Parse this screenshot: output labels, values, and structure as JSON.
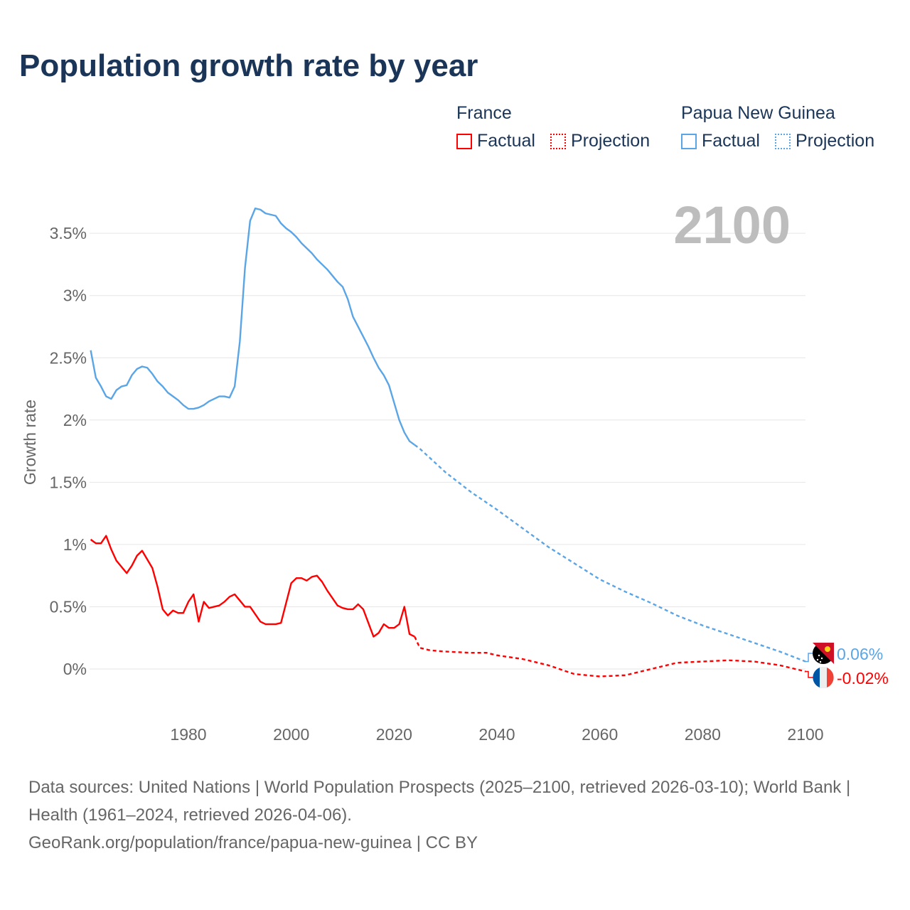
{
  "chart_data": {
    "type": "line",
    "title": "Population growth rate by year",
    "ylabel": "Growth rate",
    "xlabel": "",
    "xlim": [
      1961,
      2100
    ],
    "ylim": [
      -0.25,
      3.8
    ],
    "x_ticks": [
      1980,
      2000,
      2020,
      2040,
      2060,
      2080,
      2100
    ],
    "x_tick_labels": [
      "1980",
      "2000",
      "2020",
      "2040",
      "2060",
      "2080",
      "2100"
    ],
    "y_ticks": [
      0,
      0.5,
      1,
      1.5,
      2,
      2.5,
      3,
      3.5
    ],
    "y_tick_labels": [
      "0%",
      "0.5%",
      "1%",
      "1.5%",
      "2%",
      "2.5%",
      "3%",
      "3.5%"
    ],
    "grid": true,
    "year_label": "2100",
    "legend_placement": "top-right",
    "series": [
      {
        "name": "France",
        "color": "#ff0000",
        "end_label": "-0.02%",
        "factual_label": "Factual",
        "projection_label": "Projection",
        "factual": {
          "x": [
            1961,
            1962,
            1963,
            1964,
            1965,
            1966,
            1967,
            1968,
            1969,
            1970,
            1971,
            1972,
            1973,
            1974,
            1975,
            1976,
            1977,
            1978,
            1979,
            1980,
            1981,
            1982,
            1983,
            1984,
            1985,
            1986,
            1987,
            1988,
            1989,
            1990,
            1991,
            1992,
            1993,
            1994,
            1995,
            1996,
            1997,
            1998,
            1999,
            2000,
            2001,
            2002,
            2003,
            2004,
            2005,
            2006,
            2007,
            2008,
            2009,
            2010,
            2011,
            2012,
            2013,
            2014,
            2015,
            2016,
            2017,
            2018,
            2019,
            2020,
            2021,
            2022,
            2023,
            2024
          ],
          "y": [
            1.04,
            1.01,
            1.01,
            1.07,
            0.96,
            0.87,
            0.82,
            0.77,
            0.83,
            0.91,
            0.95,
            0.88,
            0.81,
            0.66,
            0.48,
            0.43,
            0.47,
            0.45,
            0.45,
            0.54,
            0.6,
            0.38,
            0.54,
            0.49,
            0.5,
            0.51,
            0.54,
            0.58,
            0.6,
            0.55,
            0.5,
            0.5,
            0.44,
            0.38,
            0.36,
            0.36,
            0.36,
            0.37,
            0.53,
            0.69,
            0.73,
            0.73,
            0.71,
            0.74,
            0.75,
            0.7,
            0.63,
            0.57,
            0.51,
            0.49,
            0.48,
            0.48,
            0.52,
            0.48,
            0.37,
            0.26,
            0.29,
            0.36,
            0.33,
            0.33,
            0.36,
            0.5,
            0.28,
            0.26
          ]
        },
        "projection": {
          "x": [
            2024,
            2025,
            2027,
            2030,
            2035,
            2038,
            2040,
            2045,
            2050,
            2055,
            2060,
            2065,
            2070,
            2075,
            2080,
            2085,
            2090,
            2095,
            2100
          ],
          "y": [
            0.26,
            0.17,
            0.15,
            0.14,
            0.13,
            0.13,
            0.11,
            0.08,
            0.03,
            -0.04,
            -0.06,
            -0.05,
            0.0,
            0.05,
            0.06,
            0.07,
            0.06,
            0.03,
            -0.02
          ]
        }
      },
      {
        "name": "Papua New Guinea",
        "color": "#5aa5e6",
        "end_label": "0.06%",
        "factual_label": "Factual",
        "projection_label": "Projection",
        "factual": {
          "x": [
            1961,
            1962,
            1963,
            1964,
            1965,
            1966,
            1967,
            1968,
            1969,
            1970,
            1971,
            1972,
            1973,
            1974,
            1975,
            1976,
            1977,
            1978,
            1979,
            1980,
            1981,
            1982,
            1983,
            1984,
            1985,
            1986,
            1987,
            1988,
            1989,
            1990,
            1991,
            1992,
            1993,
            1994,
            1995,
            1996,
            1997,
            1998,
            1999,
            2000,
            2001,
            2002,
            2003,
            2004,
            2005,
            2006,
            2007,
            2008,
            2009,
            2010,
            2011,
            2012,
            2013,
            2014,
            2015,
            2016,
            2017,
            2018,
            2019,
            2020,
            2021,
            2022,
            2023,
            2024
          ],
          "y": [
            2.56,
            2.34,
            2.27,
            2.19,
            2.17,
            2.24,
            2.27,
            2.28,
            2.36,
            2.41,
            2.43,
            2.42,
            2.37,
            2.31,
            2.27,
            2.22,
            2.19,
            2.16,
            2.12,
            2.09,
            2.09,
            2.1,
            2.12,
            2.15,
            2.17,
            2.19,
            2.19,
            2.18,
            2.27,
            2.63,
            3.22,
            3.6,
            3.7,
            3.69,
            3.66,
            3.65,
            3.64,
            3.58,
            3.54,
            3.51,
            3.47,
            3.42,
            3.38,
            3.34,
            3.29,
            3.25,
            3.21,
            3.16,
            3.11,
            3.07,
            2.97,
            2.83,
            2.75,
            2.67,
            2.59,
            2.5,
            2.42,
            2.36,
            2.28,
            2.14,
            2.0,
            1.9,
            1.83,
            1.8
          ]
        },
        "projection": {
          "x": [
            2024,
            2025,
            2030,
            2035,
            2040,
            2045,
            2050,
            2055,
            2060,
            2065,
            2070,
            2075,
            2080,
            2085,
            2090,
            2095,
            2100
          ],
          "y": [
            1.8,
            1.77,
            1.58,
            1.42,
            1.28,
            1.13,
            0.98,
            0.85,
            0.72,
            0.62,
            0.53,
            0.43,
            0.35,
            0.28,
            0.21,
            0.14,
            0.06
          ]
        }
      }
    ]
  },
  "footer": {
    "sources": "Data sources: United Nations | World Population Prospects (2025–2100, retrieved 2026-03-10); World Bank | Health (1961–2024, retrieved 2026-04-06).",
    "link": "GeoRank.org/population/france/papua-new-guinea | CC BY"
  }
}
